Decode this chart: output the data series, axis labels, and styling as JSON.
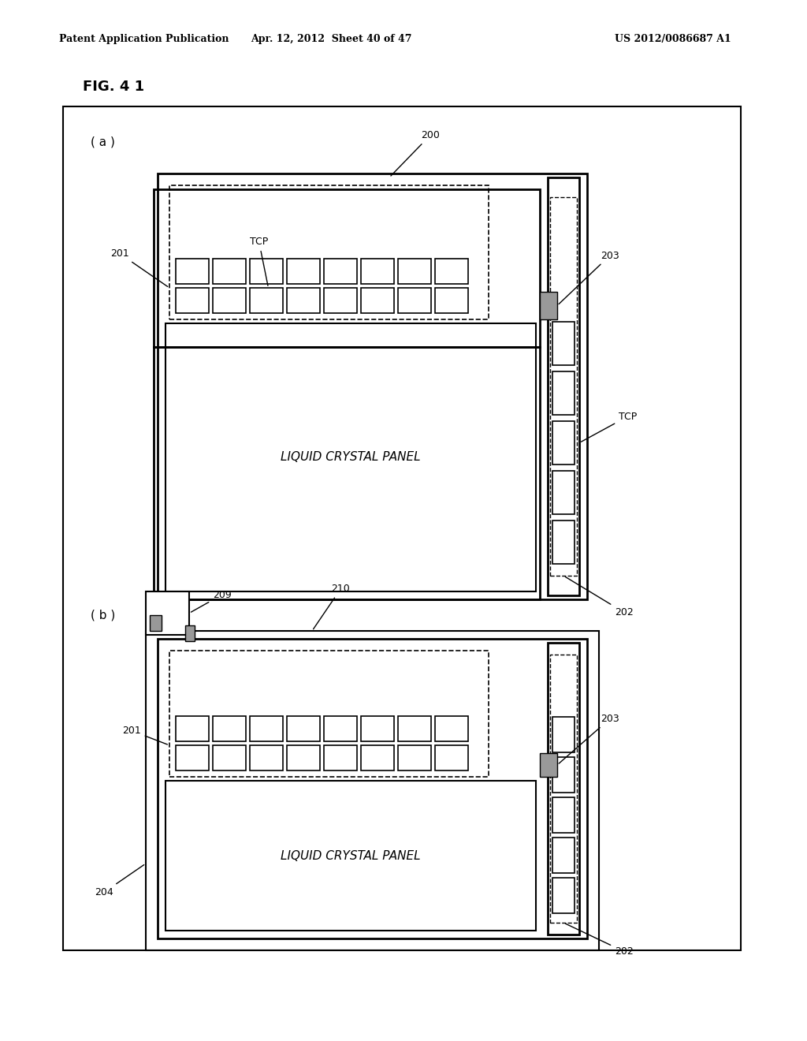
{
  "fig_label": "FIG. 4 1",
  "header_left": "Patent Application Publication",
  "header_center": "Apr. 12, 2012  Sheet 40 of 47",
  "header_right": "US 2012/0086687 A1",
  "bg_color": "#ffffff",
  "line_color": "#000000",
  "gray_color": "#888888",
  "light_gray": "#cccccc"
}
